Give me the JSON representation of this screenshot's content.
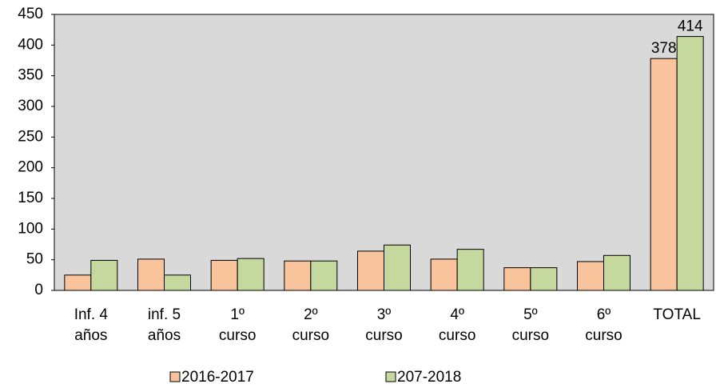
{
  "chart_data": {
    "type": "bar",
    "categories": [
      [
        "Inf. 4",
        "años"
      ],
      [
        "inf. 5",
        "años"
      ],
      [
        "1º",
        "curso"
      ],
      [
        "2º",
        "curso"
      ],
      [
        "3º",
        "curso"
      ],
      [
        "4º",
        "curso"
      ],
      [
        "5º",
        "curso"
      ],
      [
        "6º",
        "curso"
      ],
      [
        "TOTAL"
      ]
    ],
    "series": [
      {
        "name": "2016-2017",
        "color": "#f9c39c",
        "values": [
          25,
          51,
          49,
          48,
          64,
          51,
          37,
          47,
          378
        ],
        "value_labels": [
          null,
          null,
          null,
          null,
          null,
          null,
          null,
          null,
          "378"
        ]
      },
      {
        "name": "207-2018",
        "color": "#c5d99e",
        "values": [
          49,
          25,
          52,
          48,
          74,
          67,
          37,
          57,
          414
        ],
        "value_labels": [
          null,
          null,
          null,
          null,
          null,
          null,
          null,
          null,
          "414"
        ]
      }
    ],
    "ylim": [
      0,
      450
    ],
    "yticks": [
      0,
      50,
      100,
      150,
      200,
      250,
      300,
      350,
      400,
      450
    ],
    "plot_background": "#d9d9d9",
    "legend": "bottom"
  }
}
